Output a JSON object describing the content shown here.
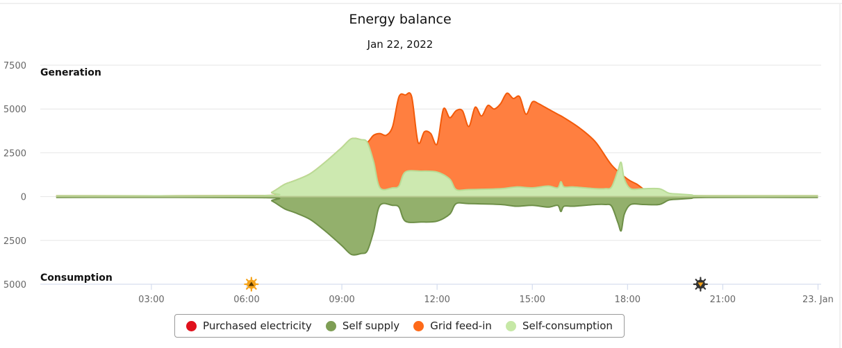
{
  "chart_data": {
    "type": "area",
    "title": "Energy balance",
    "subtitle": "Jan 22, 2022",
    "upper_label": "Generation",
    "lower_label": "Consumption",
    "y_ticks": [
      {
        "value": 7500,
        "label": "7500"
      },
      {
        "value": 5000,
        "label": "5000"
      },
      {
        "value": 2500,
        "label": "2500"
      },
      {
        "value": 0,
        "label": "0"
      },
      {
        "value": -2500,
        "label": "2500"
      },
      {
        "value": -5000,
        "label": "5000"
      }
    ],
    "ylim": [
      -5000,
      7500
    ],
    "x_unit": "hours",
    "xlim": [
      -0.5,
      24.1
    ],
    "x_ticks": [
      {
        "value": 3,
        "label": "03:00"
      },
      {
        "value": 6,
        "label": "06:00"
      },
      {
        "value": 9,
        "label": "09:00"
      },
      {
        "value": 12,
        "label": "12:00"
      },
      {
        "value": 15,
        "label": "15:00"
      },
      {
        "value": 18,
        "label": "18:00"
      },
      {
        "value": 21,
        "label": "21:00"
      },
      {
        "value": 24,
        "label": "23. Jan"
      }
    ],
    "markers": [
      {
        "name": "sunrise",
        "x": 6.15,
        "icon": "sunrise-icon"
      },
      {
        "name": "sunset",
        "x": 20.3,
        "icon": "sunset-icon"
      }
    ],
    "grid": true,
    "legend_position": "bottom",
    "series": [
      {
        "name": "Grid feed-in",
        "color": "#fe6a19",
        "x": [
          0,
          6.5,
          6.8,
          7.2,
          7.5,
          8.0,
          8.5,
          9.0,
          9.3,
          9.6,
          9.8,
          10.0,
          10.2,
          10.4,
          10.6,
          10.8,
          11.0,
          11.2,
          11.4,
          11.6,
          11.8,
          12.0,
          12.2,
          12.4,
          12.6,
          12.8,
          13.0,
          13.2,
          13.4,
          13.6,
          13.8,
          14.0,
          14.2,
          14.4,
          14.6,
          14.8,
          15.0,
          15.2,
          15.4,
          15.6,
          15.8,
          16.0,
          16.5,
          17.0,
          17.5,
          18.0,
          18.3,
          18.6,
          18.8,
          19.0,
          19.2,
          19.5,
          20.0,
          20.5,
          24
        ],
        "values": [
          50,
          60,
          250,
          700,
          900,
          1300,
          2000,
          2800,
          3300,
          3250,
          3100,
          3500,
          3600,
          3500,
          4000,
          5700,
          5800,
          5700,
          3100,
          3700,
          3600,
          3000,
          5000,
          4500,
          4900,
          4900,
          4000,
          5100,
          4600,
          5200,
          5000,
          5300,
          5900,
          5600,
          5700,
          4700,
          5400,
          5300,
          5100,
          4900,
          4700,
          4500,
          3900,
          3100,
          1800,
          1000,
          700,
          300,
          200,
          150,
          100,
          60,
          50,
          50,
          50
        ]
      },
      {
        "name": "Self-consumption",
        "color": "#c6e8a6",
        "x": [
          0,
          6.5,
          6.8,
          7.2,
          7.5,
          8.0,
          8.5,
          9.0,
          9.3,
          9.6,
          9.8,
          10.0,
          10.2,
          10.6,
          10.8,
          11.0,
          11.5,
          12.0,
          12.4,
          12.6,
          13.0,
          14.0,
          14.5,
          15.0,
          15.5,
          15.8,
          15.9,
          16.0,
          16.3,
          17.0,
          17.3,
          17.5,
          17.7,
          17.8,
          17.9,
          18.1,
          18.5,
          19.0,
          19.3,
          19.6,
          20.0,
          20.5,
          24
        ],
        "values": [
          50,
          60,
          250,
          700,
          900,
          1300,
          2000,
          2800,
          3300,
          3250,
          3100,
          2000,
          500,
          500,
          600,
          1400,
          1450,
          1400,
          1000,
          400,
          400,
          450,
          550,
          500,
          600,
          500,
          850,
          550,
          550,
          450,
          450,
          550,
          1500,
          1950,
          1000,
          450,
          450,
          450,
          200,
          150,
          100,
          50,
          50
        ]
      },
      {
        "name": "Self supply",
        "color": "#7e9e55",
        "x": [
          0,
          6.5,
          6.8,
          7.2,
          7.5,
          8.0,
          8.5,
          9.0,
          9.3,
          9.6,
          9.8,
          10.0,
          10.2,
          10.6,
          10.8,
          11.0,
          11.5,
          12.0,
          12.4,
          12.6,
          13.0,
          14.0,
          14.5,
          15.0,
          15.5,
          15.8,
          15.9,
          16.0,
          16.3,
          17.0,
          17.3,
          17.5,
          17.7,
          17.8,
          17.9,
          18.1,
          18.5,
          19.0,
          19.3,
          19.6,
          20.0,
          20.5,
          24
        ],
        "values": [
          -50,
          -60,
          -250,
          -700,
          -900,
          -1300,
          -2000,
          -2800,
          -3300,
          -3250,
          -3100,
          -2000,
          -500,
          -500,
          -600,
          -1400,
          -1450,
          -1400,
          -1000,
          -400,
          -400,
          -450,
          -550,
          -500,
          -600,
          -500,
          -850,
          -550,
          -550,
          -450,
          -450,
          -550,
          -1500,
          -1950,
          -1000,
          -450,
          -450,
          -450,
          -200,
          -150,
          -100,
          -50,
          -50
        ]
      }
    ],
    "legend": [
      {
        "name": "Purchased electricity",
        "color": "#e0111c"
      },
      {
        "name": "Self supply",
        "color": "#7e9e55"
      },
      {
        "name": "Grid feed-in",
        "color": "#fe6a19"
      },
      {
        "name": "Self-consumption",
        "color": "#c6e8a6"
      }
    ]
  }
}
